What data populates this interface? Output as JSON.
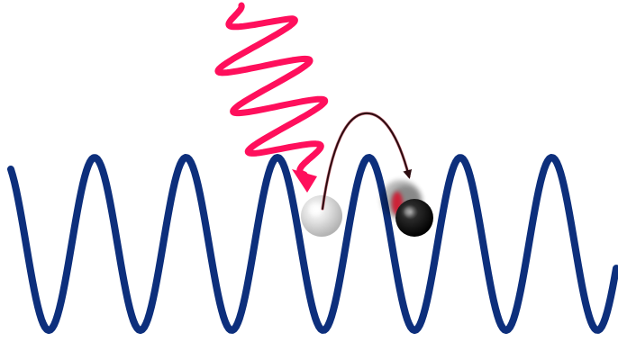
{
  "diagram": {
    "colors": {
      "background": "#ffffff",
      "lattice_wave": "#0d2f7c",
      "photon": "#ff0f5c",
      "trajectory_arrow": "#3a1014",
      "atom_initial": "#cfcfcf",
      "atom_excited": "#111111",
      "atom_excited_highlight": "#e4001f"
    },
    "elements": {
      "lattice": "optical-lattice-potential",
      "photon": "incoming-photon-wavy-arrow",
      "atom_initial": "atom-before-excitation",
      "atom_final": "atom-after-hop",
      "hop": "tunneling-hop-arrow"
    }
  }
}
